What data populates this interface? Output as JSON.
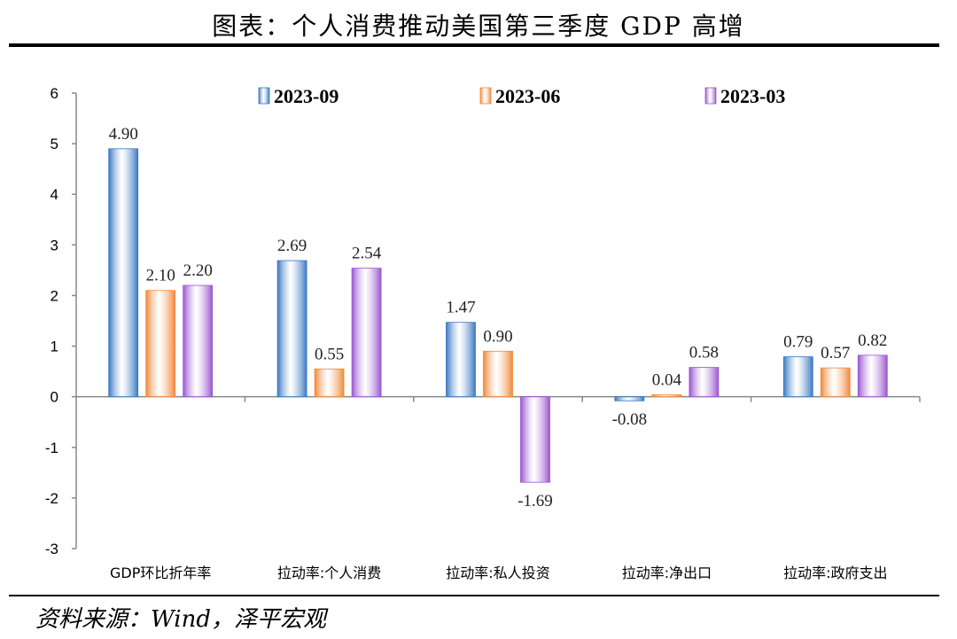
{
  "header": {
    "title": "图表：个人消费推动美国第三季度 GDP 高增"
  },
  "footer": {
    "source": "资料来源：Wind，泽平宏观"
  },
  "chart_data": {
    "type": "bar",
    "categories": [
      "GDP环比折年率",
      "拉动率:个人消费",
      "拉动率:私人投资",
      "拉动率:净出口",
      "拉动率:政府支出"
    ],
    "series": [
      {
        "name": "2023-09",
        "color": "#3a78c2",
        "values": [
          4.9,
          2.69,
          1.47,
          -0.08,
          0.79
        ],
        "labels": [
          "4.90",
          "2.69",
          "1.47",
          "-0.08",
          "0.79"
        ]
      },
      {
        "name": "2023-06",
        "color": "#f0883a",
        "values": [
          2.1,
          0.55,
          0.9,
          0.04,
          0.57
        ],
        "labels": [
          "2.10",
          "0.55",
          "0.90",
          "0.04",
          "0.57"
        ]
      },
      {
        "name": "2023-03",
        "color": "#9a55d0",
        "values": [
          2.2,
          2.54,
          -1.69,
          0.58,
          0.82
        ],
        "labels": [
          "2.20",
          "2.54",
          "-1.69",
          "0.58",
          "0.82"
        ]
      }
    ],
    "ylim": [
      -3,
      6
    ],
    "yticks": [
      "6",
      "5",
      "4",
      "3",
      "2",
      "1",
      "0",
      "-1",
      "-2",
      "-3"
    ],
    "legend": "top",
    "grid": false
  }
}
